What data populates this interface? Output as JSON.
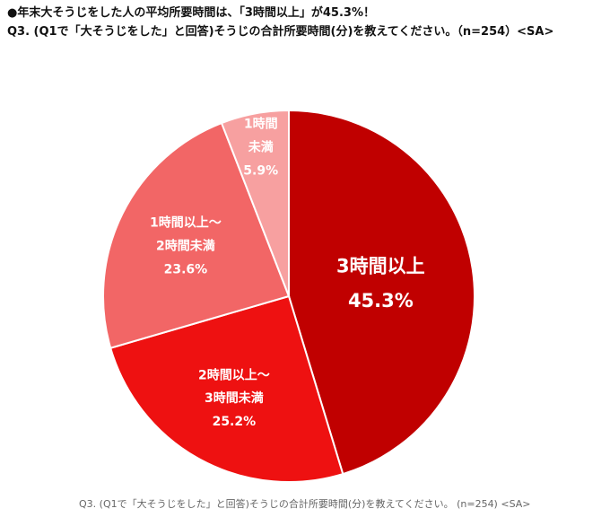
{
  "header": {
    "headline": "●年末大そうじをした人の平均所要時間は、「3時間以上」が45.3%！",
    "question": "Q3. (Q1で「大そうじをした」と回答)そうじの合計所要時間(分)を教えてください。（n=254）<SA>"
  },
  "chart_data": {
    "type": "pie",
    "title": "Q3. (Q1で「大そうじをした」と回答)そうじの合計所要時間(分)を教えてください。（n=254）<SA>",
    "start": "12 o'clock, clockwise",
    "slices": [
      {
        "label_lines": [
          "3時間以上"
        ],
        "value": 45.3,
        "value_label": "45.3%",
        "color": "#C00000"
      },
      {
        "label_lines": [
          "2時間以上～",
          "3時間未満"
        ],
        "value": 25.2,
        "value_label": "25.2%",
        "color": "#EE1111"
      },
      {
        "label_lines": [
          "1時間以上～",
          "2時間未満"
        ],
        "value": 23.6,
        "value_label": "23.6%",
        "color": "#F26666"
      },
      {
        "label_lines": [
          "1時間",
          "未満"
        ],
        "value": 5.9,
        "value_label": "5.9%",
        "color": "#F7A0A0"
      }
    ]
  },
  "caption": "Q3. (Q1で「大そうじをした」と回答)そうじの合計所要時間(分)を教えてください。 (n=254) <SA>"
}
